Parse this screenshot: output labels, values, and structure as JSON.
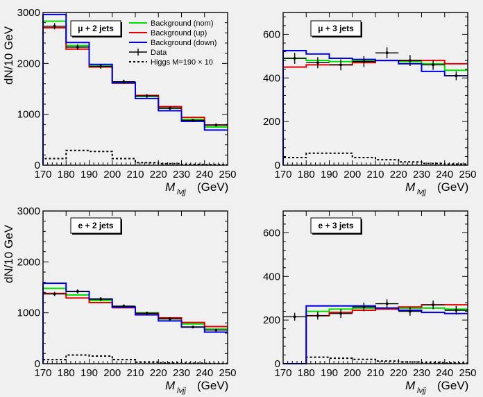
{
  "colors": {
    "nom": "#00e000",
    "up": "#e00000",
    "down": "#0000e0",
    "data": "#000000",
    "higgs": "#000000",
    "bg": "#f0f0f0"
  },
  "chart_data": [
    {
      "type": "histogram",
      "label": "μ + 2 jets",
      "xlabel": "M",
      "xlabel_sub": "lνjj",
      "xlabel_unit": "(GeV)",
      "ylabel": "dN/10 GeV",
      "xlim": [
        170,
        250
      ],
      "ylim": [
        0,
        3000
      ],
      "xticks": [
        "170",
        "180",
        "190",
        "200",
        "210",
        "220",
        "230",
        "240",
        "250"
      ],
      "yticks": [
        "0",
        "1000",
        "2000",
        "3000"
      ],
      "bin_edges": [
        170,
        180,
        190,
        200,
        210,
        220,
        230,
        240,
        250
      ],
      "series": [
        {
          "name": "Background (nom)",
          "key": "nom",
          "values": [
            2830,
            2350,
            1960,
            1630,
            1350,
            1120,
            900,
            750
          ]
        },
        {
          "name": "Background (up)",
          "key": "up",
          "values": [
            2700,
            2280,
            1930,
            1610,
            1370,
            1150,
            940,
            790
          ]
        },
        {
          "name": "Background (down)",
          "key": "down",
          "values": [
            2960,
            2410,
            1980,
            1620,
            1310,
            1070,
            860,
            690
          ]
        },
        {
          "name": "Higgs M=190 × 10",
          "key": "higgs",
          "values": [
            130,
            290,
            270,
            130,
            50,
            30,
            15,
            10
          ]
        }
      ],
      "data": {
        "name": "Data",
        "x": [
          175,
          185,
          195,
          205,
          215,
          225,
          235,
          245
        ],
        "y": [
          2730,
          2320,
          1940,
          1640,
          1360,
          1120,
          880,
          790
        ],
        "err": [
          60,
          55,
          45,
          40,
          37,
          33,
          30,
          28
        ]
      },
      "legend": {
        "position": "top-right",
        "entries": [
          "Background (nom)",
          "Background (up)",
          "Background (down)",
          "Data",
          "Higgs M=190 × 10"
        ]
      }
    },
    {
      "type": "histogram",
      "label": "μ + 3 jets",
      "xlabel": "M",
      "xlabel_sub": "lνjj",
      "xlabel_unit": "(GeV)",
      "ylabel": "",
      "xlim": [
        170,
        250
      ],
      "ylim": [
        0,
        700
      ],
      "xticks": [
        "170",
        "180",
        "190",
        "200",
        "210",
        "220",
        "230",
        "240",
        "250"
      ],
      "yticks": [
        "0",
        "200",
        "400",
        "600"
      ],
      "bin_edges": [
        170,
        180,
        190,
        200,
        210,
        220,
        230,
        240,
        250
      ],
      "series": [
        {
          "name": "Background (nom)",
          "key": "nom",
          "values": [
            490,
            480,
            475,
            480,
            480,
            475,
            465,
            435
          ]
        },
        {
          "name": "Background (up)",
          "key": "up",
          "values": [
            450,
            460,
            460,
            470,
            480,
            480,
            480,
            465
          ]
        },
        {
          "name": "Background (down)",
          "key": "down",
          "values": [
            525,
            510,
            490,
            485,
            480,
            465,
            430,
            410
          ]
        },
        {
          "name": "Higgs",
          "key": "higgs",
          "values": [
            35,
            55,
            55,
            35,
            25,
            15,
            8,
            5
          ]
        }
      ],
      "data": {
        "name": "Data",
        "x": [
          175,
          185,
          195,
          205,
          215,
          225,
          235,
          245
        ],
        "y": [
          490,
          470,
          460,
          475,
          515,
          480,
          460,
          410
        ],
        "err": [
          25,
          25,
          25,
          25,
          25,
          25,
          23,
          20
        ]
      }
    },
    {
      "type": "histogram",
      "label": "e + 2 jets",
      "xlabel": "M",
      "xlabel_sub": "lνjj",
      "xlabel_unit": "(GeV)",
      "ylabel": "dN/10 GeV",
      "xlim": [
        170,
        250
      ],
      "ylim": [
        0,
        3000
      ],
      "xticks": [
        "170",
        "180",
        "190",
        "200",
        "210",
        "220",
        "230",
        "240",
        "250"
      ],
      "yticks": [
        "0",
        "1000",
        "2000",
        "3000"
      ],
      "bin_edges": [
        170,
        180,
        190,
        200,
        210,
        220,
        230,
        240,
        250
      ],
      "series": [
        {
          "name": "Background (nom)",
          "key": "nom",
          "values": [
            1480,
            1350,
            1240,
            1120,
            1000,
            880,
            780,
            680
          ]
        },
        {
          "name": "Background (up)",
          "key": "up",
          "values": [
            1380,
            1290,
            1200,
            1100,
            990,
            900,
            810,
            730
          ]
        },
        {
          "name": "Background (down)",
          "key": "down",
          "values": [
            1580,
            1420,
            1270,
            1110,
            960,
            840,
            720,
            620
          ]
        },
        {
          "name": "Higgs",
          "key": "higgs",
          "values": [
            80,
            170,
            150,
            80,
            30,
            15,
            10,
            5
          ]
        }
      ],
      "data": {
        "name": "Data",
        "x": [
          175,
          185,
          195,
          205,
          215,
          225,
          235,
          245
        ],
        "y": [
          1370,
          1420,
          1270,
          1130,
          990,
          880,
          720,
          660
        ],
        "err": [
          40,
          40,
          38,
          35,
          33,
          30,
          27,
          25
        ]
      }
    },
    {
      "type": "histogram",
      "label": "e + 3 jets",
      "xlabel": "M",
      "xlabel_sub": "lνjj",
      "xlabel_unit": "(GeV)",
      "ylabel": "",
      "xlim": [
        170,
        250
      ],
      "ylim": [
        0,
        700
      ],
      "xticks": [
        "170",
        "180",
        "190",
        "200",
        "210",
        "220",
        "230",
        "240",
        "250"
      ],
      "yticks": [
        "0",
        "200",
        "400",
        "600"
      ],
      "bin_edges": [
        170,
        180,
        190,
        200,
        210,
        220,
        230,
        240,
        250
      ],
      "series": [
        {
          "name": "Background (nom)",
          "key": "nom",
          "values": [
            0,
            240,
            250,
            255,
            255,
            255,
            255,
            250
          ]
        },
        {
          "name": "Background (up)",
          "key": "up",
          "values": [
            0,
            220,
            235,
            245,
            250,
            260,
            270,
            270
          ]
        },
        {
          "name": "Background (down)",
          "key": "down",
          "values": [
            0,
            265,
            265,
            265,
            255,
            245,
            235,
            230
          ]
        },
        {
          "name": "Higgs",
          "key": "higgs",
          "values": [
            0,
            30,
            25,
            20,
            12,
            8,
            5,
            3
          ]
        }
      ],
      "data": {
        "name": "Data",
        "x": [
          175,
          185,
          195,
          205,
          215,
          225,
          235,
          245
        ],
        "y": [
          215,
          220,
          230,
          260,
          275,
          240,
          270,
          245
        ],
        "err": [
          18,
          18,
          20,
          20,
          20,
          20,
          20,
          20
        ]
      }
    }
  ]
}
